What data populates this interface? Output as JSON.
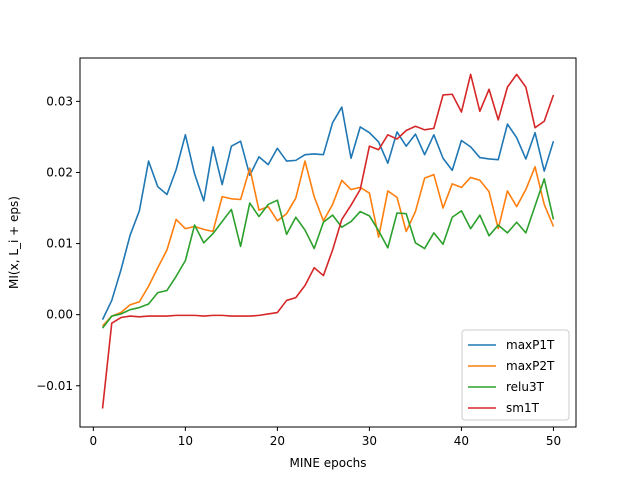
{
  "chart_data": {
    "type": "line",
    "title": "",
    "xlabel": "MINE epochs",
    "ylabel": "MI(x, L_i + eps)",
    "xlim": [
      -1.45,
      52.45
    ],
    "ylim": [
      -0.0158,
      0.0361
    ],
    "xticks": [
      0,
      10,
      20,
      30,
      40,
      50
    ],
    "xtick_labels": [
      "0",
      "10",
      "20",
      "30",
      "40",
      "50"
    ],
    "yticks": [
      -0.01,
      0.0,
      0.01,
      0.02,
      0.03
    ],
    "ytick_labels": [
      "−0.01",
      "0.00",
      "0.01",
      "0.02",
      "0.03"
    ],
    "grid": false,
    "legend_position": "lower right",
    "x": [
      1,
      2,
      3,
      4,
      5,
      6,
      7,
      8,
      9,
      10,
      11,
      12,
      13,
      14,
      15,
      16,
      17,
      18,
      19,
      20,
      21,
      22,
      23,
      24,
      25,
      26,
      27,
      28,
      29,
      30,
      31,
      32,
      33,
      34,
      35,
      36,
      37,
      38,
      39,
      40,
      41,
      42,
      43,
      44,
      45,
      46,
      47,
      48,
      49,
      50
    ],
    "series": [
      {
        "name": "maxP1T",
        "color": "#1f77b4",
        "values": [
          -0.0007,
          0.002,
          0.0063,
          0.0112,
          0.0146,
          0.0216,
          0.018,
          0.0169,
          0.0204,
          0.0253,
          0.0198,
          0.016,
          0.0236,
          0.0183,
          0.0237,
          0.0244,
          0.0196,
          0.0222,
          0.0211,
          0.0234,
          0.0216,
          0.0217,
          0.0225,
          0.0226,
          0.0225,
          0.027,
          0.0292,
          0.022,
          0.0264,
          0.0256,
          0.0243,
          0.0213,
          0.0257,
          0.0237,
          0.0254,
          0.0225,
          0.0253,
          0.022,
          0.0203,
          0.0245,
          0.0236,
          0.0221,
          0.0219,
          0.0218,
          0.0268,
          0.0249,
          0.0219,
          0.0256,
          0.0202,
          0.0244
        ]
      },
      {
        "name": "maxP2T",
        "color": "#ff7f0e",
        "values": [
          -0.0016,
          -0.0002,
          0.0003,
          0.0014,
          0.0018,
          0.004,
          0.0066,
          0.0091,
          0.0134,
          0.0121,
          0.0124,
          0.012,
          0.0117,
          0.0166,
          0.0163,
          0.0162,
          0.0206,
          0.0147,
          0.0152,
          0.0132,
          0.0142,
          0.0164,
          0.0216,
          0.0166,
          0.0132,
          0.0155,
          0.0189,
          0.0176,
          0.0179,
          0.0171,
          0.0109,
          0.0174,
          0.0165,
          0.0117,
          0.0145,
          0.0192,
          0.0197,
          0.015,
          0.0184,
          0.0179,
          0.0193,
          0.0189,
          0.0173,
          0.0121,
          0.0174,
          0.0152,
          0.0176,
          0.0208,
          0.0155,
          0.0124
        ]
      },
      {
        "name": "relu3T",
        "color": "#2ca02c",
        "values": [
          -0.0019,
          -0.0002,
          0.0001,
          0.0007,
          0.001,
          0.0015,
          0.0031,
          0.0034,
          0.0054,
          0.0076,
          0.0126,
          0.0101,
          0.0114,
          0.0131,
          0.0148,
          0.0096,
          0.0157,
          0.0138,
          0.0155,
          0.0161,
          0.0113,
          0.0137,
          0.0119,
          0.0093,
          0.013,
          0.014,
          0.0123,
          0.0131,
          0.0145,
          0.0139,
          0.0118,
          0.0094,
          0.0143,
          0.0142,
          0.0101,
          0.0093,
          0.0115,
          0.0099,
          0.0137,
          0.0146,
          0.0121,
          0.014,
          0.0111,
          0.0126,
          0.0115,
          0.013,
          0.0115,
          0.0153,
          0.0191,
          0.0134
        ]
      },
      {
        "name": "sm1T",
        "color": "#d62728",
        "values": [
          -0.0132,
          -0.0012,
          -0.0004,
          -0.0002,
          -0.0003,
          -0.0002,
          -0.0002,
          -0.0002,
          -0.0001,
          -0.0001,
          -0.0001,
          -0.0002,
          -0.0001,
          -0.0001,
          -0.0002,
          -0.0002,
          -0.0002,
          -0.0001,
          0.0001,
          0.0003,
          0.002,
          0.0024,
          0.0041,
          0.0066,
          0.0055,
          0.0091,
          0.0134,
          0.0154,
          0.0176,
          0.0237,
          0.0232,
          0.0253,
          0.0247,
          0.0259,
          0.0265,
          0.026,
          0.0262,
          0.0309,
          0.031,
          0.0285,
          0.0338,
          0.0286,
          0.0317,
          0.0274,
          0.032,
          0.0338,
          0.032,
          0.0263,
          0.0272,
          0.0309
        ]
      }
    ]
  }
}
